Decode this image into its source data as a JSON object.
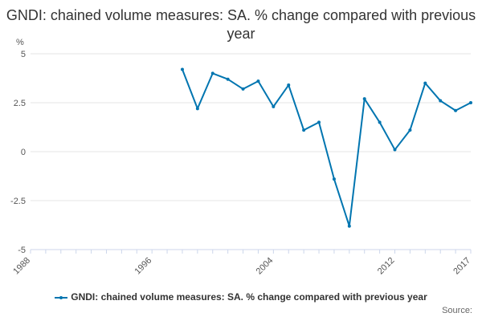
{
  "chart_data": {
    "type": "line",
    "title": "GNDI: chained volume measures: SA. % change compared with previous year",
    "ylabel": "%",
    "xlabel": "",
    "xlim": [
      1988,
      2017
    ],
    "ylim": [
      -5,
      5
    ],
    "x_ticks": [
      1988,
      1996,
      2004,
      2012,
      2017
    ],
    "y_ticks": [
      5,
      2.5,
      0,
      -2.5,
      -5
    ],
    "y_tick_labels": [
      "5",
      "2.5",
      "0",
      "-2.5",
      "-5"
    ],
    "grid": "horizontal",
    "legend_position": "bottom",
    "series": [
      {
        "name": "GNDI: chained volume measures: SA. % change compared with previous year",
        "color": "#0075b0",
        "x": [
          1998,
          1999,
          2000,
          2001,
          2002,
          2003,
          2004,
          2005,
          2006,
          2007,
          2008,
          2009,
          2010,
          2011,
          2012,
          2013,
          2014,
          2015,
          2016,
          2017
        ],
        "y": [
          4.2,
          2.2,
          4.0,
          3.7,
          3.2,
          3.6,
          2.3,
          3.4,
          1.1,
          1.5,
          -1.4,
          -3.8,
          2.7,
          1.5,
          0.1,
          1.1,
          3.5,
          2.6,
          2.1,
          2.5
        ]
      }
    ],
    "source_label": "Source:"
  }
}
